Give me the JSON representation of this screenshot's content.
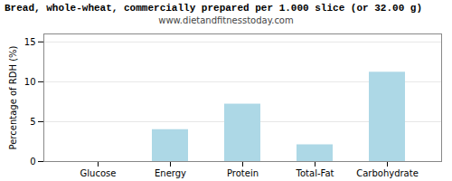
{
  "chart_data": {
    "type": "bar",
    "title": "Bread, whole-wheat, commercially prepared per 1.000 slice (or 32.00 g)",
    "subtitle": "www.dietandfitnesstoday.com",
    "categories": [
      "Glucose",
      "Energy",
      "Protein",
      "Total-Fat",
      "Carbohydrate"
    ],
    "values": [
      0,
      4.0,
      7.2,
      2.1,
      11.2
    ],
    "color": "#add8e6",
    "ylabel": "Percentage of RDH (%)",
    "ylim": [
      0,
      16
    ],
    "yticks": [
      0,
      5,
      10,
      15
    ],
    "grid": true
  }
}
